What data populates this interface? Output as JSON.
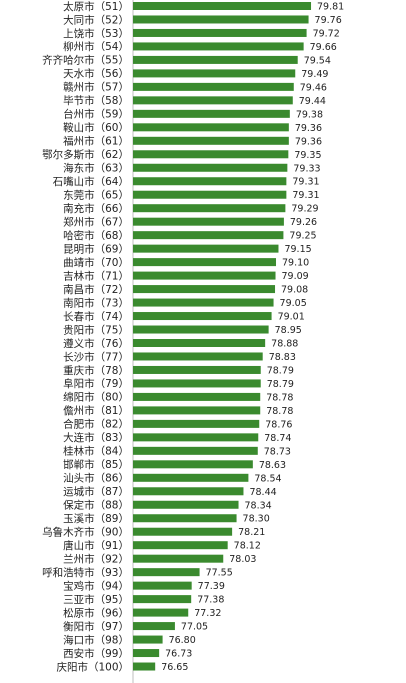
{
  "chart_data": {
    "type": "bar",
    "orientation": "horizontal",
    "bar_color": "#3a8a2e",
    "xlim": [
      76.2,
      79.85
    ],
    "categories": [
      "太原市（51）",
      "大同市（52）",
      "上饶市（53）",
      "柳州市（54）",
      "齐齐哈尔市（55）",
      "天水市（56）",
      "赣州市（57）",
      "毕节市（58）",
      "台州市（59）",
      "鞍山市（60）",
      "福州市（61）",
      "鄂尔多斯市（62）",
      "海东市（63）",
      "石嘴山市（64）",
      "东莞市（65）",
      "南充市（66）",
      "郑州市（67）",
      "哈密市（68）",
      "昆明市（69）",
      "曲靖市（70）",
      "吉林市（71）",
      "南昌市（72）",
      "南阳市（73）",
      "长春市（74）",
      "贵阳市（75）",
      "遵义市（76）",
      "长沙市（77）",
      "重庆市（78）",
      "阜阳市（79）",
      "绵阳市（80）",
      "儋州市（81）",
      "合肥市（82）",
      "大连市（83）",
      "桂林市（84）",
      "邯郸市（85）",
      "汕头市（86）",
      "运城市（87）",
      "保定市（88）",
      "玉溪市（89）",
      "乌鲁木齐市（90）",
      "唐山市（91）",
      "兰州市（92）",
      "呼和浩特市（93）",
      "宝鸡市（94）",
      "三亚市（95）",
      "松原市（96）",
      "衡阳市（97）",
      "海口市（98）",
      "西安市（99）",
      "庆阳市（100）"
    ],
    "values": [
      79.81,
      79.76,
      79.72,
      79.66,
      79.54,
      79.49,
      79.46,
      79.44,
      79.38,
      79.36,
      79.36,
      79.35,
      79.33,
      79.31,
      79.31,
      79.29,
      79.26,
      79.25,
      79.15,
      79.1,
      79.09,
      79.08,
      79.05,
      79.01,
      78.95,
      78.88,
      78.83,
      78.79,
      78.79,
      78.78,
      78.78,
      78.76,
      78.74,
      78.73,
      78.63,
      78.54,
      78.44,
      78.34,
      78.3,
      78.21,
      78.12,
      78.03,
      77.55,
      77.39,
      77.38,
      77.32,
      77.05,
      76.8,
      76.73,
      76.65
    ],
    "value_labels": [
      "79.81",
      "79.76",
      "79.72",
      "79.66",
      "79.54",
      "79.49",
      "79.46",
      "79.44",
      "79.38",
      "79.36",
      "79.36",
      "79.35",
      "79.33",
      "79.31",
      "79.31",
      "79.29",
      "79.26",
      "79.25",
      "79.15",
      "79.10",
      "79.09",
      "79.08",
      "79.05",
      "79.01",
      "78.95",
      "78.88",
      "78.83",
      "78.79",
      "78.79",
      "78.78",
      "78.78",
      "78.76",
      "78.74",
      "78.73",
      "78.63",
      "78.54",
      "78.44",
      "78.34",
      "78.30",
      "78.21",
      "78.12",
      "78.03",
      "77.55",
      "77.39",
      "77.38",
      "77.32",
      "77.05",
      "76.80",
      "76.73",
      "76.65"
    ]
  }
}
